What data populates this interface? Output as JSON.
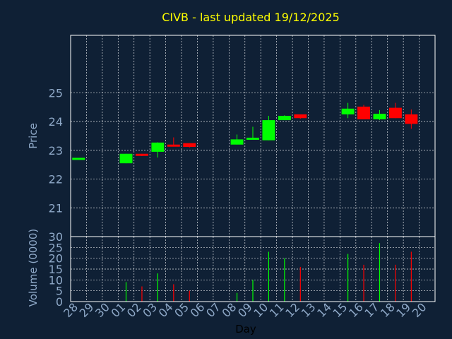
{
  "chart_data": {
    "type": "candlestick",
    "title": "CIVB - last updated 19/12/2025",
    "colors": {
      "background": "#0f2035",
      "axis": "#ffffff",
      "grid": "#ffffff",
      "label": "#8fa9c8",
      "title": "#ffff00",
      "up": "#00ff00",
      "down": "#ff0000"
    },
    "grid": true,
    "x_categories": [
      "28",
      "29",
      "30",
      "01",
      "02",
      "03",
      "04",
      "05",
      "06",
      "07",
      "08",
      "09",
      "10",
      "11",
      "12",
      "13",
      "14",
      "15",
      "16",
      "17",
      "18",
      "19",
      "20"
    ],
    "xlabel": "Day",
    "price_panel": {
      "ylabel": "Price",
      "yticks": [
        21,
        22,
        23,
        24,
        25
      ],
      "ylim": [
        20.0,
        27.0
      ]
    },
    "volume_panel": {
      "ylabel": "Volume (0000)",
      "yticks": [
        0,
        5,
        10,
        15,
        20,
        25,
        30
      ],
      "ylim": [
        0,
        30
      ]
    },
    "candles": [
      {
        "day": "28",
        "open": 22.74,
        "high": 22.74,
        "low": 22.74,
        "close": 22.74,
        "volume": 0
      },
      {
        "day": "01",
        "open": 22.55,
        "high": 22.88,
        "low": 22.55,
        "close": 22.88,
        "volume": 9
      },
      {
        "day": "02",
        "open": 22.88,
        "high": 22.88,
        "low": 22.8,
        "close": 22.82,
        "volume": 7
      },
      {
        "day": "03",
        "open": 22.95,
        "high": 23.28,
        "low": 22.75,
        "close": 23.27,
        "volume": 13
      },
      {
        "day": "04",
        "open": 23.2,
        "high": 23.45,
        "low": 23.15,
        "close": 23.17,
        "volume": 8
      },
      {
        "day": "05",
        "open": 23.25,
        "high": 23.25,
        "low": 23.1,
        "close": 23.12,
        "volume": 5
      },
      {
        "day": "08",
        "open": 23.2,
        "high": 23.55,
        "low": 23.2,
        "close": 23.38,
        "volume": 4
      },
      {
        "day": "09",
        "open": 23.38,
        "high": 23.82,
        "low": 23.38,
        "close": 23.44,
        "volume": 10
      },
      {
        "day": "10",
        "open": 23.35,
        "high": 24.2,
        "low": 23.35,
        "close": 24.05,
        "volume": 23
      },
      {
        "day": "11",
        "open": 24.05,
        "high": 24.22,
        "low": 24.05,
        "close": 24.2,
        "volume": 20
      },
      {
        "day": "12",
        "open": 24.25,
        "high": 24.25,
        "low": 24.1,
        "close": 24.12,
        "volume": 16
      },
      {
        "day": "15",
        "open": 24.25,
        "high": 24.65,
        "low": 24.12,
        "close": 24.45,
        "volume": 22
      },
      {
        "day": "16",
        "open": 24.52,
        "high": 24.58,
        "low": 24.08,
        "close": 24.08,
        "volume": 17
      },
      {
        "day": "17",
        "open": 24.08,
        "high": 24.4,
        "low": 24.05,
        "close": 24.27,
        "volume": 27
      },
      {
        "day": "18",
        "open": 24.48,
        "high": 24.65,
        "low": 24.12,
        "close": 24.12,
        "volume": 17
      },
      {
        "day": "19",
        "open": 24.25,
        "high": 24.42,
        "low": 23.75,
        "close": 23.92,
        "volume": 23
      }
    ]
  }
}
